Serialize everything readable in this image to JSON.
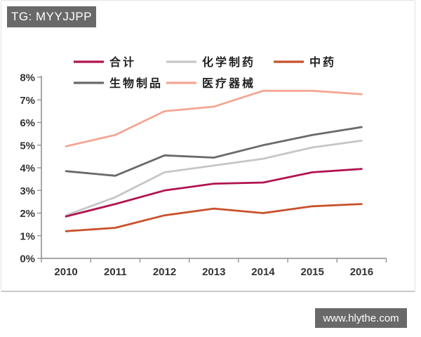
{
  "source_tag": {
    "label": "TG: MYYJJPP"
  },
  "watermark": {
    "label": "www.hlythe.com"
  },
  "colors": {
    "badge_bg": "#696969",
    "badge_text": "#ffffff",
    "axis": "#8c8c8c",
    "axis_label": "#333333"
  },
  "chart_data": {
    "type": "line",
    "categories": [
      "2010",
      "2011",
      "2012",
      "2013",
      "2014",
      "2015",
      "2016"
    ],
    "series": [
      {
        "id": "total",
        "name": "合计",
        "color": "#b1134f",
        "values": [
          1.85,
          2.4,
          3.0,
          3.3,
          3.35,
          3.8,
          3.95
        ]
      },
      {
        "id": "chem-pharma",
        "name": "化学制药",
        "color": "#c6c6c8",
        "values": [
          1.9,
          2.7,
          3.8,
          4.1,
          4.4,
          4.9,
          5.2
        ]
      },
      {
        "id": "tcm",
        "name": "中药",
        "color": "#c8512b",
        "values": [
          1.2,
          1.35,
          1.9,
          2.2,
          2.0,
          2.3,
          2.4
        ]
      },
      {
        "id": "biologics",
        "name": "生物制品",
        "color": "#6a6a6a",
        "values": [
          3.85,
          3.65,
          4.55,
          4.45,
          5.0,
          5.45,
          5.8
        ]
      },
      {
        "id": "medical-devices",
        "name": "医疗器械",
        "color": "#f4a693",
        "values": [
          4.95,
          5.45,
          6.5,
          6.7,
          7.4,
          7.4,
          7.25
        ]
      }
    ],
    "title": "",
    "xlabel": "",
    "ylabel": "",
    "ylim": [
      0,
      8
    ],
    "yticks": [
      0,
      1,
      2,
      3,
      4,
      5,
      6,
      7,
      8
    ],
    "ytick_suffix": "%",
    "grid": false,
    "legend_position": "top-inside",
    "draw_order": [
      "medical-devices",
      "biologics",
      "chem-pharma",
      "tcm",
      "total"
    ]
  }
}
